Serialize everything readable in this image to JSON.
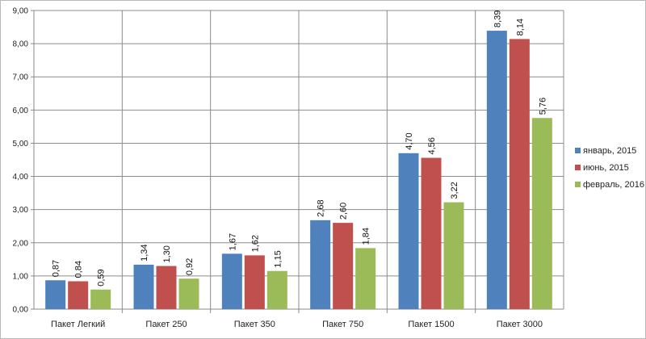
{
  "chart_data": {
    "type": "bar",
    "categories": [
      "Пакет Легкий",
      "Пакет 250",
      "Пакет 350",
      "Пакет 750",
      "Пакет 1500",
      "Пакет 3000"
    ],
    "series": [
      {
        "name": "январь, 2015",
        "values": [
          0.87,
          1.34,
          1.67,
          2.68,
          4.7,
          8.39
        ],
        "labels": [
          "0,87",
          "1,34",
          "1,67",
          "2,68",
          "4,70",
          "8,39"
        ],
        "color": "#4f81bd"
      },
      {
        "name": "июнь, 2015",
        "values": [
          0.84,
          1.3,
          1.62,
          2.6,
          4.56,
          8.14
        ],
        "labels": [
          "0,84",
          "1,30",
          "1,62",
          "2,60",
          "4,56",
          "8,14"
        ],
        "color": "#c0504d"
      },
      {
        "name": "февраль, 2016",
        "values": [
          0.59,
          0.92,
          1.15,
          1.84,
          3.22,
          5.76
        ],
        "labels": [
          "0,59",
          "0,92",
          "1,15",
          "1,84",
          "3,22",
          "5,76"
        ],
        "color": "#9bbb59"
      }
    ],
    "y_ticks": [
      "0,00",
      "1,00",
      "2,00",
      "3,00",
      "4,00",
      "5,00",
      "6,00",
      "7,00",
      "8,00",
      "9,00"
    ],
    "ylim": [
      0,
      9
    ],
    "title": "",
    "xlabel": "",
    "ylabel": "",
    "grid": true,
    "legend_position": "right",
    "plot_background": "#ffffff",
    "grid_color": "#8c8c8c"
  }
}
